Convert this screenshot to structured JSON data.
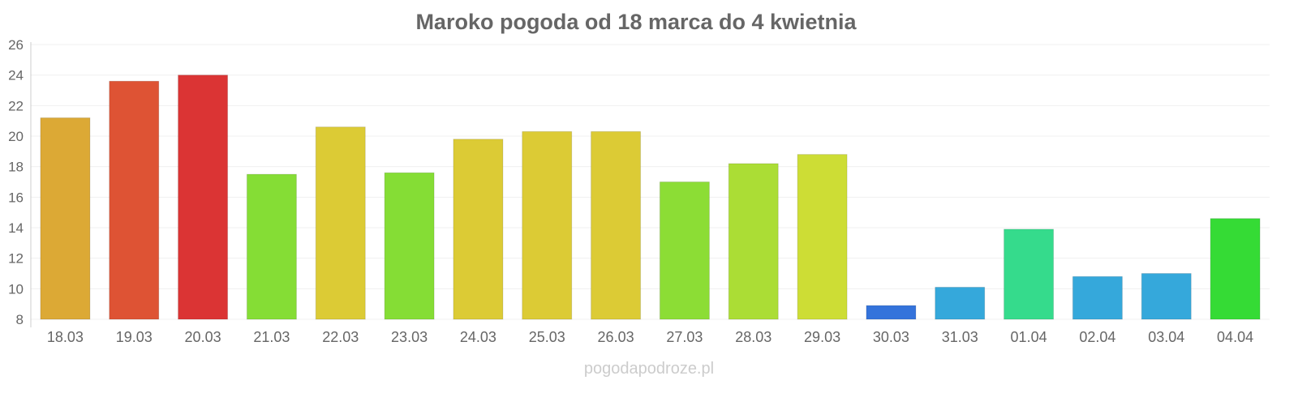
{
  "chart_data": {
    "type": "bar",
    "title": "Maroko pogoda od 18 marca do 4 kwietnia",
    "xlabel": "",
    "ylabel": "",
    "ylim": [
      8,
      26
    ],
    "yticks": [
      8,
      10,
      12,
      14,
      16,
      18,
      20,
      22,
      24,
      26
    ],
    "grid": true,
    "categories": [
      "18.03",
      "19.03",
      "20.03",
      "21.03",
      "22.03",
      "23.03",
      "24.03",
      "25.03",
      "26.03",
      "27.03",
      "28.03",
      "29.03",
      "30.03",
      "31.03",
      "01.04",
      "02.04",
      "03.04",
      "04.04"
    ],
    "values": [
      21.2,
      23.6,
      24.0,
      17.5,
      20.6,
      17.6,
      19.8,
      20.3,
      20.3,
      17.0,
      18.2,
      18.8,
      8.9,
      10.1,
      13.9,
      10.8,
      11.0,
      14.6
    ],
    "colors": [
      "#dca935",
      "#de5334",
      "#db3434",
      "#85dd35",
      "#dccb35",
      "#85dd35",
      "#dccb35",
      "#dccb35",
      "#dccb35",
      "#8cdd35",
      "#abdd35",
      "#cddd35",
      "#3473db",
      "#35a8db",
      "#35db8c",
      "#35a8db",
      "#35a8db",
      "#35db35"
    ]
  },
  "watermark": "pogodapodroze.pl"
}
